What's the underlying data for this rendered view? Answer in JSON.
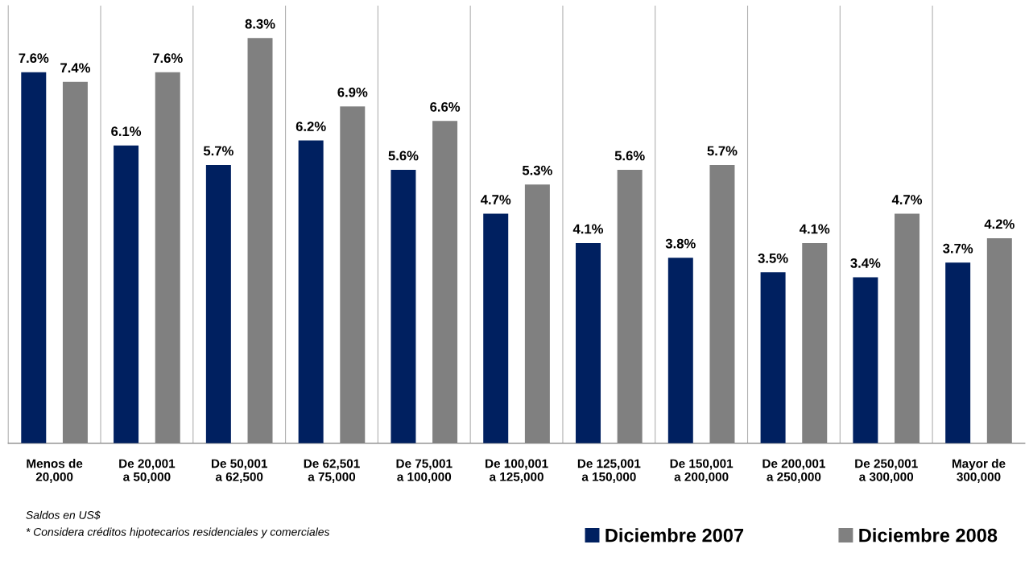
{
  "chart_data": {
    "type": "bar",
    "categories": [
      "Menos de\n20,000",
      "De 20,001\na 50,000",
      "De 50,001\na 62,500",
      "De 62,501\na 75,000",
      "De 75,001\na 100,000",
      "De 100,001\na 125,000",
      "De 125,001\na 150,000",
      "De 150,001\na 200,000",
      "De 200,001\na 250,000",
      "De 250,001\na 300,000",
      "Mayor de\n300,000"
    ],
    "series": [
      {
        "name": "Diciembre 2007",
        "color": "#002060",
        "values": [
          7.6,
          6.1,
          5.7,
          6.2,
          5.6,
          4.7,
          4.1,
          3.8,
          3.5,
          3.4,
          3.7
        ],
        "value_labels": [
          "7.6%",
          "6.1%",
          "5.7%",
          "6.2%",
          "5.6%",
          "4.7%",
          "4.1%",
          "3.8%",
          "3.5%",
          "3.4%",
          "3.7%"
        ]
      },
      {
        "name": "Diciembre 2008",
        "color": "#808080",
        "values": [
          7.4,
          7.6,
          8.3,
          6.9,
          6.6,
          5.3,
          5.6,
          5.7,
          4.1,
          4.7,
          4.2
        ],
        "value_labels": [
          "7.4%",
          "7.6%",
          "8.3%",
          "6.9%",
          "6.6%",
          "5.3%",
          "5.6%",
          "5.7%",
          "4.1%",
          "4.7%",
          "4.2%"
        ]
      }
    ],
    "annotations": [
      "Saldos en US$",
      "* Considera créditos hipotecarios residenciales y comerciales"
    ],
    "grid": "x",
    "legend": "bottom right",
    "tick_labels": "x"
  }
}
